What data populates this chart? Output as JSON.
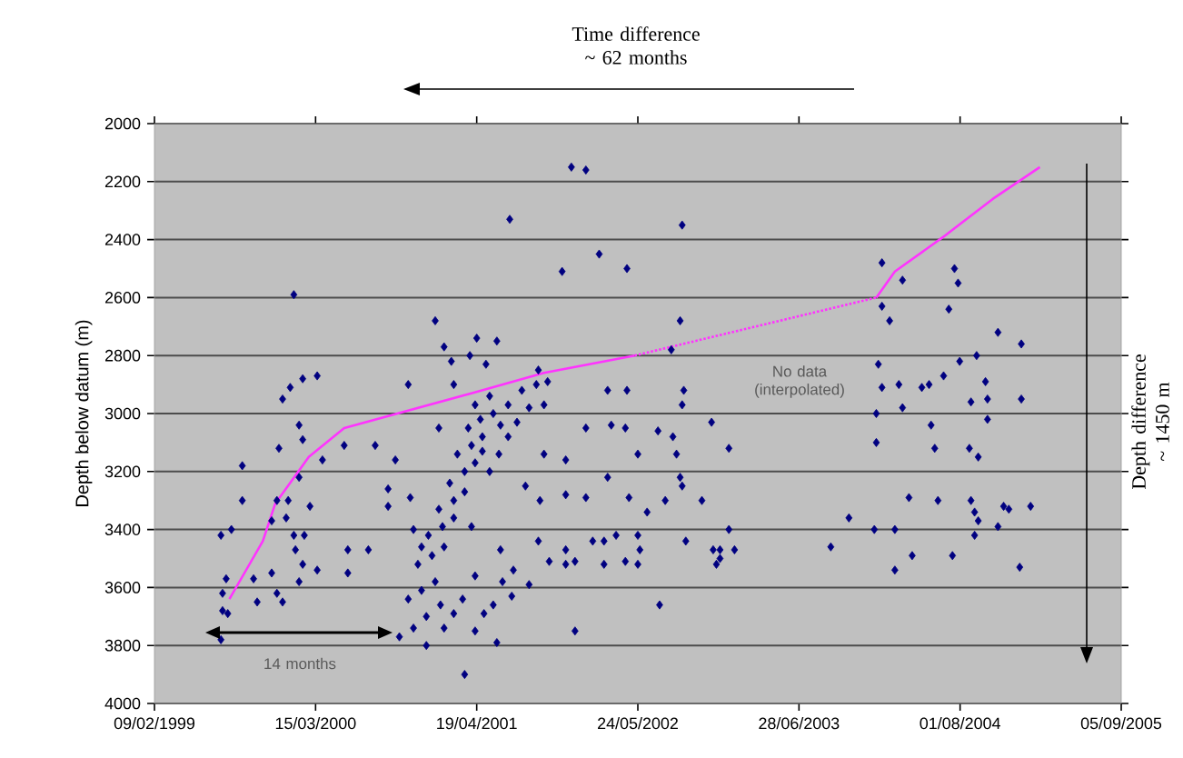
{
  "chart_data": {
    "type": "scatter",
    "ylabel": "Depth below datum (m)",
    "annotations": [
      "Time difference ~ 62 months",
      "Depth difference ~ 1450 m",
      "No data (interpolated)",
      "14 months"
    ],
    "xlim": [
      "1999-02-09",
      "2005-09-05"
    ],
    "xticks": [
      {
        "value": "1999-02-09",
        "label": "09/02/1999"
      },
      {
        "value": "2000-03-15",
        "label": "15/03/2000"
      },
      {
        "value": "2001-04-19",
        "label": "19/04/2001"
      },
      {
        "value": "2002-05-24",
        "label": "24/05/2002"
      },
      {
        "value": "2003-06-28",
        "label": "28/06/2003"
      },
      {
        "value": "2004-08-01",
        "label": "01/08/2004"
      },
      {
        "value": "2005-09-05",
        "label": "05/09/2005"
      }
    ],
    "ylim": [
      4000,
      2000
    ],
    "yticks": [
      2000,
      2200,
      2400,
      2600,
      2800,
      3000,
      3200,
      3400,
      3600,
      3800,
      4000
    ],
    "grid": "y",
    "series": [
      {
        "marker": "diamond",
        "color": "#000080",
        "x": [
          "2000-01-21",
          "2000-01-12",
          "1999-12-24",
          "2000-02-12",
          "2000-03-19",
          "2000-02-03",
          "2000-02-12",
          "1999-12-15",
          "2000-04-01",
          "1999-09-15",
          "2000-02-03",
          "1999-09-15",
          "1999-12-10",
          "2000-01-07",
          "2000-03-01",
          "1999-11-27",
          "2000-01-02",
          "2000-01-21",
          "1999-07-24",
          "1999-08-19",
          "2000-02-16",
          "2000-01-25",
          "2000-02-12",
          "2000-03-19",
          "1999-11-27",
          "1999-10-13",
          "1999-08-06",
          "2000-02-03",
          "1999-12-10",
          "1999-10-22",
          "1999-12-24",
          "1999-07-28",
          "1999-07-28",
          "1999-08-10",
          "1999-07-24",
          "2000-05-25",
          "2000-08-10",
          "2000-09-29",
          "2000-10-31",
          "2000-09-11",
          "2000-09-11",
          "2000-11-05",
          "2000-06-03",
          "2000-06-03",
          "2000-07-24",
          "2001-01-06",
          "2001-01-28",
          "2001-02-15",
          "2001-02-21",
          "2001-01-15",
          "2001-12-10",
          "2002-01-15",
          "2001-07-10",
          "2002-09-11",
          "2002-02-17",
          "2001-11-17",
          "2002-04-27",
          "2002-09-06",
          "2001-04-19",
          "2001-06-08",
          "2001-04-02",
          "2001-09-19",
          "2001-05-12",
          "2002-08-15",
          "2002-03-10",
          "2002-04-27",
          "2002-09-15",
          "2002-09-11",
          "2002-01-15",
          "2002-03-19",
          "2002-04-23",
          "2002-07-13",
          "2002-11-23",
          "2002-08-19",
          "2002-08-28",
          "2002-05-24",
          "2001-11-26",
          "2001-10-03",
          "2002-03-10",
          "2002-09-06",
          "2002-09-11",
          "2002-01-15",
          "2001-11-26",
          "2002-05-02",
          "2002-07-31",
          "2002-10-30",
          "2002-06-16",
          "2001-08-18",
          "2001-09-23",
          "2002-09-20",
          "2002-12-14",
          "2002-02-01",
          "2002-03-01",
          "2002-03-31",
          "2002-05-24",
          "2002-05-29",
          "2001-09-19",
          "2001-11-26",
          "2001-11-26",
          "2001-06-17",
          "2001-10-16",
          "2001-12-19",
          "2002-03-01",
          "2002-04-23",
          "2002-05-24",
          "2001-07-19",
          "2001-04-15",
          "2001-06-22",
          "2001-08-27",
          "2001-07-15",
          "2001-05-30",
          "2001-05-07",
          "2001-02-21",
          "2001-01-19",
          "2001-04-15",
          "2001-06-08",
          "2001-12-19",
          "2002-07-17",
          "2001-03-20",
          "2003-01-05",
          "2003-01-05",
          "2002-11-27",
          "2002-12-14",
          "2002-12-05",
          "2003-01-19",
          "2003-09-15",
          "2003-10-30",
          "2004-01-01",
          "2004-02-21",
          "2004-02-21",
          "2004-04-04",
          "2004-03-27",
          "2004-06-07",
          "2004-08-28",
          "2004-09-06",
          "2004-09-15",
          "2004-09-06",
          "2004-11-03",
          "2004-11-17",
          "2004-11-30",
          "2005-01-23",
          "2004-12-27",
          "2004-07-13",
          "2004-01-20",
          "2004-03-11",
          "2004-07-18",
          "2004-07-27",
          "2004-01-20",
          "2004-02-08",
          "2004-07-04",
          "2004-11-03",
          "2004-12-31",
          "2004-09-11",
          "2004-07-31",
          "2004-01-11",
          "2004-01-20",
          "2004-03-02",
          "2004-04-28",
          "2004-05-16",
          "2004-06-21",
          "2004-10-03",
          "2004-10-08",
          "2004-08-28",
          "2004-12-31",
          "2004-03-11",
          "2004-01-06",
          "2004-05-21",
          "2004-10-08",
          "2004-01-06",
          "2004-05-30",
          "2004-08-24",
          "2004-09-15",
          "2000-10-09",
          "2000-11-13",
          "2000-12-15",
          "2000-10-31",
          "2000-12-03",
          "2001-01-06",
          "2000-11-24",
          "2000-12-29",
          "2001-01-28",
          "2000-12-20",
          "2001-01-24",
          "2001-02-21",
          "2001-01-15",
          "2001-02-21",
          "2001-03-20",
          "2001-02-11",
          "2001-03-20",
          "2001-04-15",
          "2001-03-02",
          "2001-04-06",
          "2001-05-03",
          "2001-03-29",
          "2001-04-28",
          "2001-05-30",
          "2001-04-15",
          "2001-05-21",
          "2001-07-06",
          "2001-08-09",
          "2001-09-14",
          "2001-10-12",
          "2001-07-06",
          "2001-06-13",
          "2001-05-21",
          "2001-07-28",
          "2001-08-27",
          "2001-10-03",
          "2000-12-15",
          "2001-01-28",
          "2001-03-15",
          "2001-04-06",
          "2000-11-13",
          "2000-12-03",
          "2001-05-03",
          "2001-06-17"
        ],
        "values": [
          2590,
          2910,
          2950,
          2880,
          2870,
          3040,
          3090,
          3120,
          3160,
          3180,
          3220,
          3300,
          3300,
          3300,
          3320,
          3370,
          3360,
          3420,
          3420,
          3400,
          3420,
          3470,
          3520,
          3540,
          3550,
          3570,
          3570,
          3580,
          3620,
          3650,
          3650,
          3620,
          3680,
          3690,
          3780,
          3110,
          3110,
          3160,
          2900,
          3260,
          3320,
          3290,
          3470,
          3550,
          3470,
          2680,
          2770,
          2820,
          2900,
          3050,
          2150,
          2160,
          2330,
          2350,
          2450,
          2510,
          2500,
          2680,
          2740,
          2750,
          2800,
          2850,
          2830,
          2780,
          2920,
          2920,
          2920,
          2970,
          3050,
          3040,
          3050,
          3060,
          3030,
          3080,
          3140,
          3140,
          3160,
          3140,
          3220,
          3220,
          3250,
          3290,
          3280,
          3290,
          3300,
          3300,
          3340,
          3250,
          3300,
          3440,
          3470,
          3440,
          3440,
          3420,
          3420,
          3470,
          3440,
          3470,
          3520,
          3470,
          3510,
          3510,
          3520,
          3510,
          3520,
          3540,
          3560,
          3580,
          3590,
          3630,
          3660,
          3690,
          3690,
          3660,
          3750,
          3790,
          3750,
          3660,
          3900,
          3120,
          3400,
          3470,
          3500,
          3520,
          3470,
          3460,
          3360,
          3400,
          3400,
          3540,
          3490,
          3290,
          3300,
          3300,
          3340,
          3370,
          3420,
          3390,
          3320,
          3330,
          3320,
          3530,
          3490,
          2480,
          2540,
          2500,
          2550,
          2630,
          2680,
          2640,
          2720,
          2760,
          2800,
          2820,
          2830,
          2910,
          2900,
          2910,
          2900,
          2870,
          2890,
          2950,
          2960,
          2950,
          2980,
          3000,
          3040,
          3020,
          3100,
          3120,
          3120,
          3150,
          3770,
          3740,
          3700,
          3640,
          3610,
          3580,
          3520,
          3490,
          3460,
          3420,
          3390,
          3360,
          3330,
          3300,
          3270,
          3240,
          3200,
          3170,
          3140,
          3110,
          3080,
          3050,
          3020,
          3000,
          2970,
          2940,
          2970,
          2920,
          2900,
          2890,
          3080,
          3140,
          3200,
          3030,
          2980,
          2970,
          3800,
          3740,
          3640,
          3390,
          3400,
          3460,
          3130,
          3040
        ]
      },
      {
        "type": "line",
        "marker": "none",
        "line_style": "solid",
        "color": "#ff33ff",
        "x": [
          "1999-08-14",
          "1999-11-05",
          "1999-12-06",
          "2000-02-27",
          "2000-05-25",
          "2001-04-06",
          "2001-10-03",
          "2002-05-16"
        ],
        "values": [
          3640,
          3440,
          3310,
          3150,
          3050,
          2930,
          2860,
          2800
        ]
      },
      {
        "type": "line",
        "marker": "none",
        "line_style": "dotted",
        "color": "#ff33ff",
        "x": [
          "2002-05-16",
          "2004-01-06"
        ],
        "values": [
          2800,
          2600
        ]
      },
      {
        "type": "line",
        "marker": "none",
        "line_style": "solid",
        "color": "#ff33ff",
        "x": [
          "2004-01-06",
          "2004-02-21",
          "2004-06-21",
          "2004-10-21",
          "2005-02-15"
        ],
        "values": [
          2600,
          2510,
          2390,
          2260,
          2150
        ]
      }
    ]
  }
}
